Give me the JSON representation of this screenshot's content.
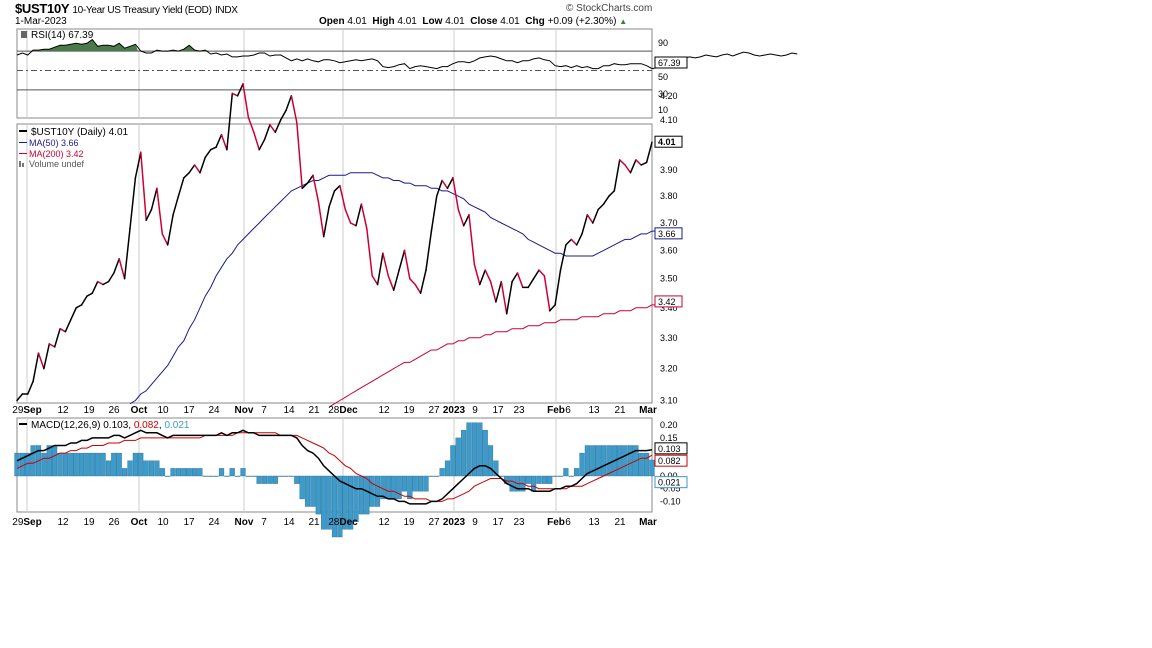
{
  "header": {
    "symbol": "$UST10Y",
    "description": "10-Year US Treasury Yield (EOD)",
    "exchange": "INDX",
    "date": "1-Mar-2023",
    "brand": "© StockCharts.com",
    "open_label": "Open",
    "open": "4.01",
    "high_label": "High",
    "high": "4.01",
    "low_label": "Low",
    "low": "4.01",
    "close_label": "Close",
    "close": "4.01",
    "chg_label": "Chg",
    "chg": "+0.09 (+2.30%)",
    "up_arrow": "▲"
  },
  "colors": {
    "price_up": "#000000",
    "price_down": "#cc0033",
    "ma50": "#1a1a8c",
    "ma200": "#cc0033",
    "macd_line": "#000000",
    "signal_line": "#cc0000",
    "histogram": "#3d9ac9",
    "rsi_fill": "#4a7a4a",
    "grid": "#cccccc"
  },
  "chart_data": [
    {
      "type": "line",
      "panel": "rsi",
      "legend": "RSI(14) 67.39",
      "ylim": [
        0,
        100
      ],
      "y_ticks": [
        "90",
        "70",
        "50",
        "30",
        "10"
      ],
      "reference_lines": [
        70,
        50,
        30
      ],
      "current_value": "67.39",
      "values": [
        66,
        68,
        66,
        71,
        71,
        72,
        72,
        74,
        76,
        76,
        77,
        78,
        77,
        78,
        82,
        75,
        76,
        76,
        75,
        78,
        73,
        75,
        77,
        70,
        68,
        68,
        71,
        70,
        70,
        71,
        70,
        72,
        76,
        71,
        70,
        71,
        67,
        68,
        66,
        67,
        64,
        64,
        65,
        65,
        66,
        68,
        68,
        65,
        66,
        66,
        63,
        60,
        62,
        60,
        62,
        60,
        59,
        61,
        61,
        60,
        58,
        59,
        60,
        61,
        60,
        61,
        62,
        60,
        54,
        53,
        54,
        56,
        57,
        52,
        54,
        55,
        54,
        53,
        52,
        54,
        54,
        57,
        59,
        59,
        58,
        60,
        63,
        64,
        65,
        64,
        62,
        60,
        60,
        58,
        60,
        60,
        62,
        63,
        61,
        60,
        55,
        54,
        55,
        53,
        55,
        53,
        54,
        52,
        52,
        55,
        55,
        57,
        56,
        56,
        57,
        57,
        57,
        55,
        52,
        53,
        55,
        60,
        62,
        63,
        63,
        64,
        63,
        64,
        66,
        65,
        64,
        66,
        67,
        65,
        67,
        69,
        68,
        66,
        65,
        66,
        67,
        66,
        65,
        66,
        68,
        67
      ]
    },
    {
      "type": "line",
      "panel": "price",
      "legend": "$UST10Y (Daily) 4.01",
      "x_tick_labels": [
        "29Sep",
        "12",
        "19",
        "26",
        "Oct",
        "10",
        "17",
        "24",
        "Nov",
        "7",
        "14",
        "21",
        "28Dec",
        "12",
        "19",
        "27",
        "2023",
        "9",
        "17",
        "23",
        "Feb",
        "6",
        "13",
        "21",
        "Mar"
      ],
      "ylim": [
        3.08,
        4.3
      ],
      "y_ticks": [
        "4.20",
        "4.10",
        "4.00",
        "3.90",
        "3.80",
        "3.70",
        "3.60",
        "3.50",
        "3.40",
        "3.30",
        "3.20",
        "3.10"
      ],
      "log_scale": true,
      "series": [
        {
          "name": "$UST10Y (Daily) 4.01",
          "current_value": "4.01",
          "values": [
            3.1,
            3.12,
            3.12,
            3.16,
            3.25,
            3.2,
            3.28,
            3.27,
            3.33,
            3.32,
            3.36,
            3.4,
            3.41,
            3.44,
            3.45,
            3.49,
            3.48,
            3.49,
            3.52,
            3.57,
            3.5,
            3.68,
            3.87,
            3.97,
            3.71,
            3.75,
            3.83,
            3.66,
            3.62,
            3.73,
            3.8,
            3.87,
            3.89,
            3.92,
            3.89,
            3.95,
            3.98,
            3.99,
            4.04,
            3.98,
            4.21,
            4.2,
            4.25,
            4.11,
            4.05,
            3.98,
            4.02,
            4.08,
            4.05,
            4.1,
            4.14,
            4.2,
            4.09,
            3.83,
            3.85,
            3.88,
            3.78,
            3.65,
            3.76,
            3.82,
            3.84,
            3.75,
            3.7,
            3.69,
            3.77,
            3.68,
            3.51,
            3.48,
            3.59,
            3.51,
            3.46,
            3.53,
            3.6,
            3.5,
            3.48,
            3.45,
            3.53,
            3.67,
            3.8,
            3.86,
            3.83,
            3.87,
            3.75,
            3.69,
            3.73,
            3.55,
            3.48,
            3.53,
            3.49,
            3.42,
            3.49,
            3.38,
            3.49,
            3.52,
            3.47,
            3.47,
            3.5,
            3.53,
            3.51,
            3.39,
            3.41,
            3.53,
            3.62,
            3.64,
            3.62,
            3.66,
            3.73,
            3.7,
            3.75,
            3.77,
            3.8,
            3.82,
            3.94,
            3.92,
            3.89,
            3.94,
            3.92,
            3.93,
            4.01
          ]
        },
        {
          "name": "MA(50) 3.66",
          "current_value": "3.66",
          "x_start_index": 21,
          "values": [
            3.09,
            3.1,
            3.12,
            3.13,
            3.15,
            3.17,
            3.19,
            3.21,
            3.24,
            3.27,
            3.29,
            3.33,
            3.36,
            3.4,
            3.44,
            3.47,
            3.51,
            3.54,
            3.57,
            3.59,
            3.62,
            3.64,
            3.66,
            3.68,
            3.7,
            3.72,
            3.74,
            3.76,
            3.78,
            3.8,
            3.82,
            3.83,
            3.84,
            3.85,
            3.86,
            3.86,
            3.87,
            3.88,
            3.88,
            3.88,
            3.88,
            3.89,
            3.89,
            3.89,
            3.89,
            3.89,
            3.88,
            3.87,
            3.87,
            3.86,
            3.86,
            3.85,
            3.85,
            3.84,
            3.84,
            3.84,
            3.83,
            3.83,
            3.82,
            3.82,
            3.81,
            3.8,
            3.79,
            3.77,
            3.76,
            3.75,
            3.74,
            3.72,
            3.71,
            3.7,
            3.69,
            3.68,
            3.67,
            3.66,
            3.64,
            3.63,
            3.62,
            3.61,
            3.6,
            3.59,
            3.59,
            3.58,
            3.58,
            3.58,
            3.58,
            3.58,
            3.58,
            3.59,
            3.6,
            3.61,
            3.62,
            3.63,
            3.64,
            3.64,
            3.65,
            3.66,
            3.66,
            3.67,
            3.67
          ]
        },
        {
          "name": "MA(200) 3.42",
          "current_value": "3.42",
          "x_start_index": 58,
          "values": [
            3.08,
            3.09,
            3.1,
            3.11,
            3.12,
            3.13,
            3.14,
            3.15,
            3.16,
            3.17,
            3.18,
            3.19,
            3.2,
            3.21,
            3.22,
            3.22,
            3.23,
            3.24,
            3.25,
            3.26,
            3.26,
            3.27,
            3.28,
            3.28,
            3.29,
            3.29,
            3.3,
            3.3,
            3.3,
            3.31,
            3.31,
            3.32,
            3.32,
            3.32,
            3.33,
            3.33,
            3.33,
            3.34,
            3.34,
            3.34,
            3.35,
            3.35,
            3.35,
            3.36,
            3.36,
            3.36,
            3.36,
            3.37,
            3.37,
            3.37,
            3.37,
            3.38,
            3.38,
            3.38,
            3.39,
            3.39,
            3.39,
            3.4,
            3.4,
            3.4,
            3.41,
            3.41,
            3.42
          ]
        }
      ],
      "volume_label": "Volume undef"
    },
    {
      "type": "line",
      "panel": "macd",
      "legend_prefix": "MACD(12,26,9)",
      "legend_macd": "0.103",
      "legend_signal": "0.082",
      "legend_hist": "0.021",
      "ylim": [
        -0.13,
        0.22
      ],
      "y_ticks": [
        "0.20",
        "0.15",
        "0.10",
        "0.05",
        "0.00",
        "-0.05",
        "-0.10"
      ],
      "x_tick_labels": [
        "29Sep",
        "12",
        "19",
        "26",
        "Oct",
        "10",
        "17",
        "24",
        "Nov",
        "7",
        "14",
        "21",
        "28Dec",
        "12",
        "19",
        "27",
        "2023",
        "9",
        "17",
        "23",
        "Feb",
        "6",
        "13",
        "21",
        "Mar"
      ],
      "series": [
        {
          "name": "MACD",
          "values": [
            0.06,
            0.07,
            0.08,
            0.09,
            0.1,
            0.1,
            0.11,
            0.12,
            0.12,
            0.12,
            0.13,
            0.13,
            0.14,
            0.14,
            0.15,
            0.15,
            0.15,
            0.15,
            0.16,
            0.16,
            0.15,
            0.16,
            0.17,
            0.18,
            0.17,
            0.17,
            0.17,
            0.16,
            0.15,
            0.16,
            0.16,
            0.16,
            0.16,
            0.16,
            0.16,
            0.16,
            0.16,
            0.16,
            0.17,
            0.16,
            0.17,
            0.17,
            0.18,
            0.17,
            0.17,
            0.16,
            0.16,
            0.16,
            0.16,
            0.16,
            0.16,
            0.16,
            0.15,
            0.12,
            0.1,
            0.09,
            0.07,
            0.04,
            0.02,
            0.0,
            -0.02,
            -0.03,
            -0.04,
            -0.05,
            -0.05,
            -0.06,
            -0.07,
            -0.08,
            -0.08,
            -0.09,
            -0.09,
            -0.1,
            -0.1,
            -0.11,
            -0.11,
            -0.11,
            -0.11,
            -0.1,
            -0.1,
            -0.09,
            -0.07,
            -0.05,
            -0.03,
            -0.01,
            0.01,
            0.03,
            0.04,
            0.04,
            0.03,
            0.01,
            -0.01,
            -0.03,
            -0.04,
            -0.05,
            -0.05,
            -0.05,
            -0.06,
            -0.06,
            -0.06,
            -0.06,
            -0.05,
            -0.05,
            -0.04,
            -0.04,
            -0.03,
            -0.01,
            0.01,
            0.02,
            0.03,
            0.04,
            0.05,
            0.06,
            0.07,
            0.08,
            0.09,
            0.1,
            0.1,
            0.1,
            0.103
          ]
        },
        {
          "name": "Signal",
          "values": [
            0.03,
            0.04,
            0.05,
            0.05,
            0.06,
            0.07,
            0.07,
            0.08,
            0.09,
            0.09,
            0.1,
            0.1,
            0.11,
            0.11,
            0.12,
            0.12,
            0.12,
            0.13,
            0.13,
            0.13,
            0.14,
            0.14,
            0.14,
            0.15,
            0.15,
            0.15,
            0.15,
            0.15,
            0.15,
            0.15,
            0.15,
            0.15,
            0.15,
            0.15,
            0.15,
            0.16,
            0.16,
            0.16,
            0.16,
            0.16,
            0.16,
            0.17,
            0.17,
            0.17,
            0.17,
            0.17,
            0.17,
            0.17,
            0.17,
            0.16,
            0.16,
            0.16,
            0.16,
            0.15,
            0.14,
            0.13,
            0.12,
            0.11,
            0.09,
            0.08,
            0.06,
            0.04,
            0.03,
            0.01,
            0.0,
            -0.01,
            -0.03,
            -0.04,
            -0.05,
            -0.06,
            -0.06,
            -0.07,
            -0.08,
            -0.08,
            -0.09,
            -0.09,
            -0.09,
            -0.1,
            -0.1,
            -0.1,
            -0.09,
            -0.09,
            -0.08,
            -0.07,
            -0.06,
            -0.04,
            -0.03,
            -0.02,
            -0.01,
            -0.01,
            -0.01,
            -0.02,
            -0.02,
            -0.03,
            -0.03,
            -0.04,
            -0.04,
            -0.05,
            -0.05,
            -0.05,
            -0.05,
            -0.05,
            -0.05,
            -0.04,
            -0.04,
            -0.04,
            -0.03,
            -0.02,
            -0.01,
            0.0,
            0.01,
            0.02,
            0.03,
            0.04,
            0.05,
            0.06,
            0.07,
            0.07,
            0.082
          ]
        }
      ]
    }
  ]
}
